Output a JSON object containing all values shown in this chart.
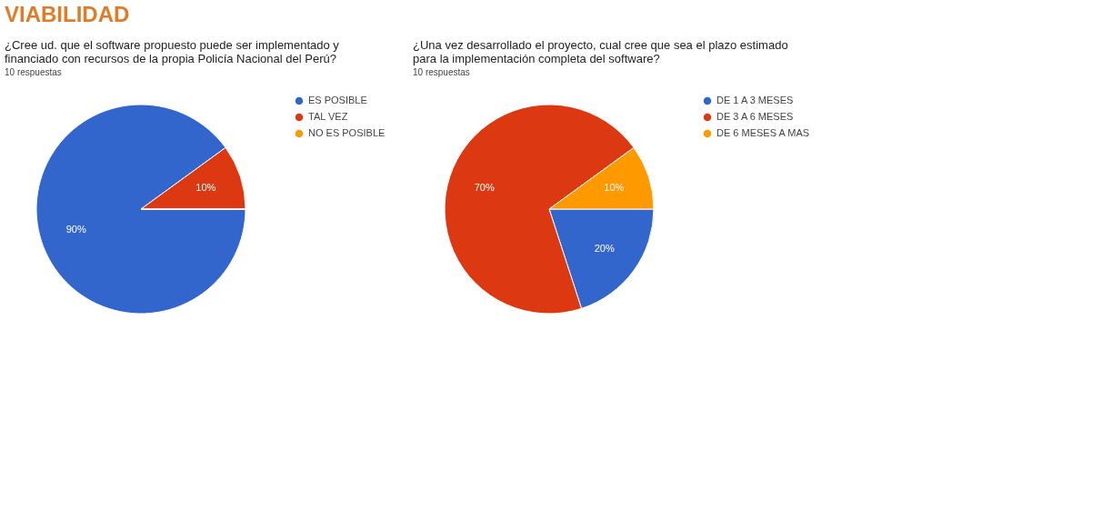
{
  "chart_data": [
    {
      "type": "pie",
      "title": "¿Cree ud. que el software propuesto puede ser implementado y financiado con recursos de la propia Policía Nacional del Perú?",
      "subtitle": "10 respuestas",
      "annotations": [
        "VIABILIDAD"
      ],
      "categories": [
        "ES POSIBLE",
        "TAL VEZ",
        "NO ES POSIBLE"
      ],
      "values": [
        90,
        10,
        0
      ],
      "colors": [
        "#3366cc",
        "#dc3912",
        "#ff9900"
      ],
      "value_labels": [
        "90%",
        "10%",
        null
      ],
      "legend": "right"
    },
    {
      "type": "pie",
      "title": "¿Una vez desarrollado el proyecto, cual cree que sea el plazo estimado para la implementación completa del software?",
      "subtitle": "10 respuestas",
      "categories": [
        "DE 1 A 3 MESES",
        "DE 3 A 6 MESES",
        "DE 6 MESES A MAS"
      ],
      "values": [
        20,
        70,
        10
      ],
      "colors": [
        "#3366cc",
        "#dc3912",
        "#ff9900"
      ],
      "value_labels": [
        "20%",
        "70%",
        "10%"
      ],
      "legend": "right"
    }
  ]
}
